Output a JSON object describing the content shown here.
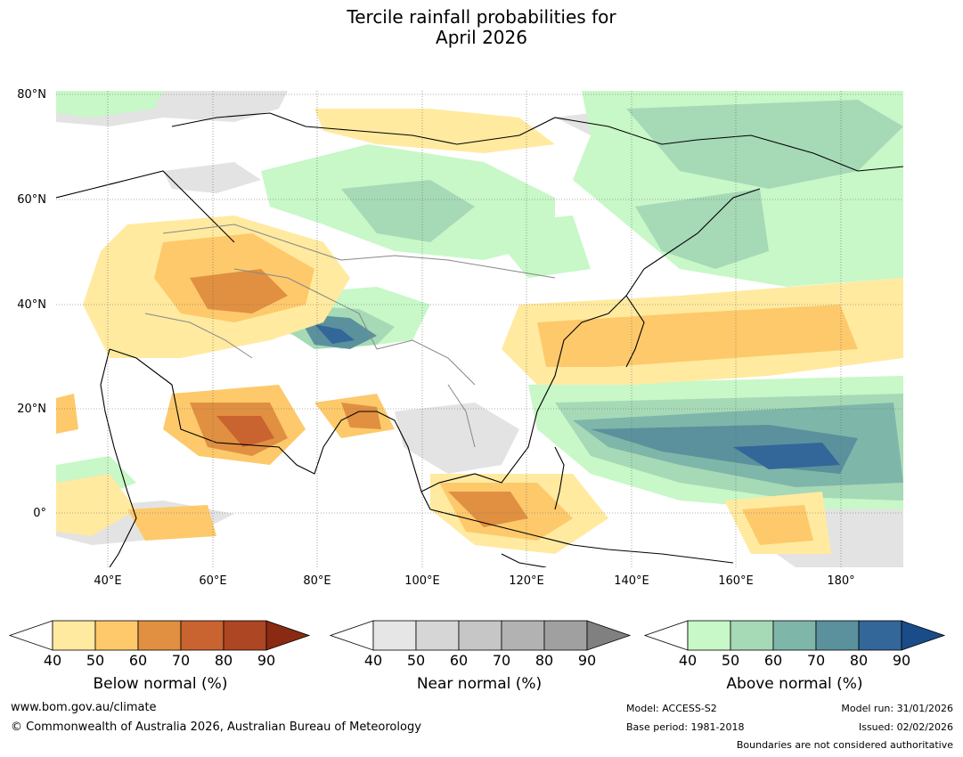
{
  "title_line1": "Tercile rainfall probabilities for",
  "title_line2": "April 2026",
  "lat_labels": [
    "80°N",
    "60°N",
    "40°N",
    "20°N",
    "0°"
  ],
  "lon_labels": [
    "40°E",
    "60°E",
    "80°E",
    "100°E",
    "120°E",
    "140°E",
    "160°E",
    "180°"
  ],
  "colorbars": [
    {
      "title": "Below normal (%)",
      "ticks": [
        "40",
        "50",
        "60",
        "70",
        "80",
        "90"
      ],
      "colors": [
        "#ffffff",
        "#ffeaa0",
        "#fdc96b",
        "#e09040",
        "#c96330",
        "#ad4622",
        "#8a2a12"
      ]
    },
    {
      "title": "Near normal (%)",
      "ticks": [
        "40",
        "50",
        "60",
        "70",
        "80",
        "90"
      ],
      "colors": [
        "#ffffff",
        "#e6e6e6",
        "#d6d6d6",
        "#c6c6c6",
        "#b2b2b2",
        "#a0a0a0",
        "#808080"
      ]
    },
    {
      "title": "Above normal (%)",
      "ticks": [
        "40",
        "50",
        "60",
        "70",
        "80",
        "90"
      ],
      "colors": [
        "#ffffff",
        "#c8f7c8",
        "#a6d9b6",
        "#7fb6aa",
        "#5a919c",
        "#336699",
        "#194c88"
      ]
    }
  ],
  "footer": {
    "url": "www.bom.gov.au/climate",
    "copyright": "© Commonwealth of Australia 2026, Australian Bureau of Meteorology",
    "model": "Model: ACCESS-S2",
    "base_period": "Base period: 1981-2018",
    "model_run": "Model run: 31/01/2026",
    "issued": "Issued: 02/02/2026",
    "disclaimer": "Boundaries are not considered authoritative"
  }
}
